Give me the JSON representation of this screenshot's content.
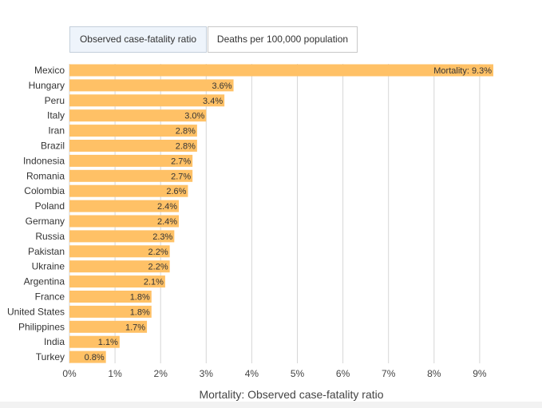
{
  "tabs": [
    {
      "label": "Observed case-fatality ratio",
      "active": true
    },
    {
      "label": "Deaths per 100,000 population",
      "active": false
    }
  ],
  "colors": {
    "bar": "#ffc166",
    "grid": "#d6d6d6",
    "label_text": "#333333",
    "value_text": "#333333"
  },
  "chart_data": {
    "type": "bar",
    "orientation": "horizontal",
    "title": "",
    "xlabel": "Mortality: Observed case-fatality ratio",
    "ylabel": "",
    "xlim": [
      0,
      9.5
    ],
    "x_ticks": [
      0,
      1,
      2,
      3,
      4,
      5,
      6,
      7,
      8,
      9
    ],
    "x_tick_labels": [
      "0%",
      "1%",
      "2%",
      "3%",
      "4%",
      "5%",
      "6%",
      "7%",
      "8%",
      "9%"
    ],
    "grid": true,
    "first_label_prefix": "Mortality: ",
    "categories": [
      "Mexico",
      "Hungary",
      "Peru",
      "Italy",
      "Iran",
      "Brazil",
      "Indonesia",
      "Romania",
      "Colombia",
      "Poland",
      "Germany",
      "Russia",
      "Pakistan",
      "Ukraine",
      "Argentina",
      "France",
      "United States",
      "Philippines",
      "India",
      "Turkey"
    ],
    "values": [
      9.3,
      3.6,
      3.4,
      3.0,
      2.8,
      2.8,
      2.7,
      2.7,
      2.6,
      2.4,
      2.4,
      2.3,
      2.2,
      2.2,
      2.1,
      1.8,
      1.8,
      1.7,
      1.1,
      0.8
    ],
    "value_labels": [
      "9.3%",
      "3.6%",
      "3.4%",
      "3.0%",
      "2.8%",
      "2.8%",
      "2.7%",
      "2.7%",
      "2.6%",
      "2.4%",
      "2.4%",
      "2.3%",
      "2.2%",
      "2.2%",
      "2.1%",
      "1.8%",
      "1.8%",
      "1.7%",
      "1.1%",
      "0.8%"
    ]
  }
}
